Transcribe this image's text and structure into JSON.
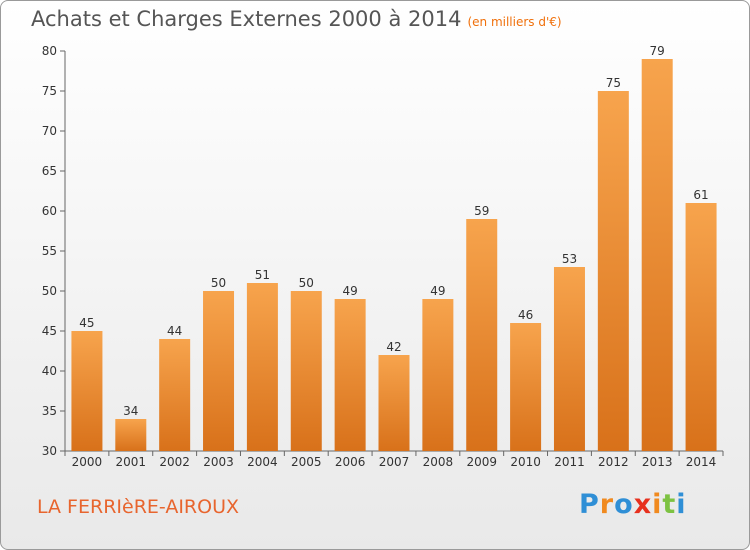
{
  "header": {
    "title": "Achats et Charges Externes 2000 à 2014",
    "subtitle": "(en milliers d'€)"
  },
  "footer": {
    "location": "LA FERRIèRE-AIROUX",
    "brand": "Proxiti"
  },
  "colors": {
    "bar_top": "#f7a44d",
    "bar_bottom": "#d8711a",
    "title": "#555555",
    "location": "#e8652e",
    "brand": [
      "#2f8fd6",
      "#f08a1f",
      "#2f8fd6",
      "#e7301e",
      "#f08a1f",
      "#7dc242",
      "#2f8fd6"
    ]
  },
  "chart_data": {
    "type": "bar",
    "title": "Achats et Charges Externes 2000 à 2014",
    "subtitle": "(en milliers d'€)",
    "categories": [
      "2000",
      "2001",
      "2002",
      "2003",
      "2004",
      "2005",
      "2006",
      "2007",
      "2008",
      "2009",
      "2010",
      "2011",
      "2012",
      "2013",
      "2014"
    ],
    "values": [
      45,
      34,
      44,
      50,
      51,
      50,
      49,
      42,
      49,
      59,
      46,
      53,
      75,
      79,
      61
    ],
    "ylim": [
      30,
      80
    ],
    "yticks": [
      30,
      35,
      40,
      45,
      50,
      55,
      60,
      65,
      70,
      75,
      80
    ],
    "grid": false,
    "data_labels": true
  }
}
